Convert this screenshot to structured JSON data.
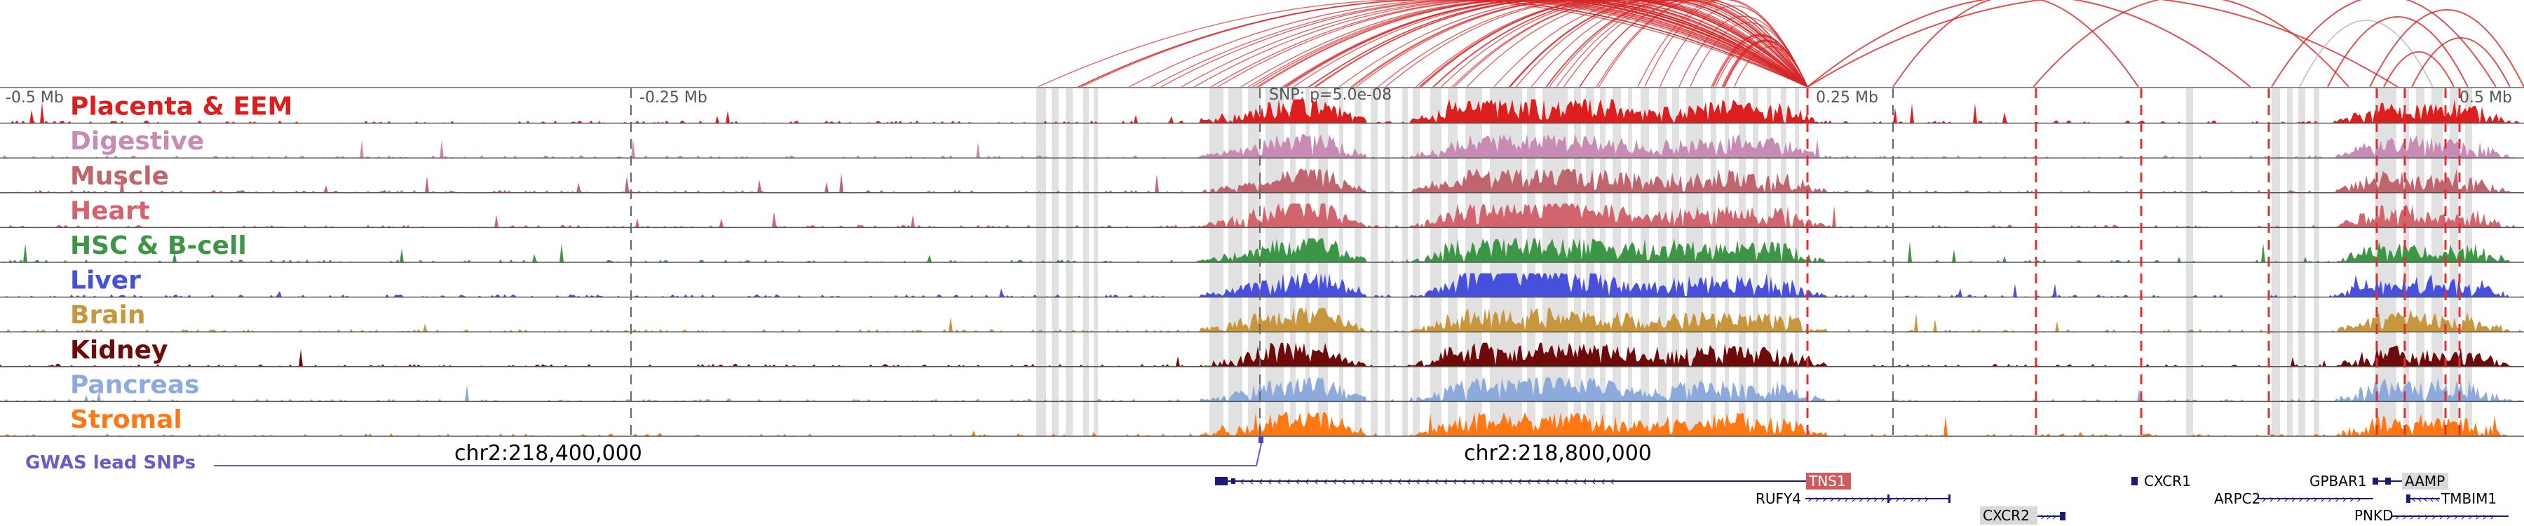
{
  "region": {
    "axis_labels": [
      "-0.5 Mb",
      "-0.25 Mb",
      "SNP: p=5.0e-08",
      "0.25 Mb",
      "0.5 Mb"
    ],
    "coord_labels": [
      "chr2:218,400,000",
      "chr2:218,800,000"
    ]
  },
  "tracks": [
    {
      "label": "Placenta & EEM",
      "color": "#dc1e1e"
    },
    {
      "label": "Digestive",
      "color": "#c88cb4"
    },
    {
      "label": "Muscle",
      "color": "#c0646e"
    },
    {
      "label": "Heart",
      "color": "#d2646e"
    },
    {
      "label": "HSC & B-cell",
      "color": "#3c9646"
    },
    {
      "label": "Liver",
      "color": "#4650dc"
    },
    {
      "label": "Brain",
      "color": "#c8963c"
    },
    {
      "label": "Kidney",
      "color": "#6e0a0a"
    },
    {
      "label": "Pancreas",
      "color": "#8caadc"
    },
    {
      "label": "Stromal",
      "color": "#ff7814"
    }
  ],
  "gwas": {
    "label": "GWAS lead SNPs",
    "color": "#6a5acd"
  },
  "genes": [
    {
      "name": "TNS1",
      "highlight": true
    },
    {
      "name": "RUFY4"
    },
    {
      "name": "CXCR2",
      "highlight": true
    },
    {
      "name": "CXCR1"
    },
    {
      "name": "GPBAR1"
    },
    {
      "name": "AAMP",
      "highlight": true
    },
    {
      "name": "ARPC2"
    },
    {
      "name": "TMBIM1"
    },
    {
      "name": "PNKD"
    }
  ],
  "colors": {
    "arc": "#d62728",
    "gene": "#1a1a7a",
    "shade": "#dcdcdc",
    "dash": "#e03030"
  }
}
